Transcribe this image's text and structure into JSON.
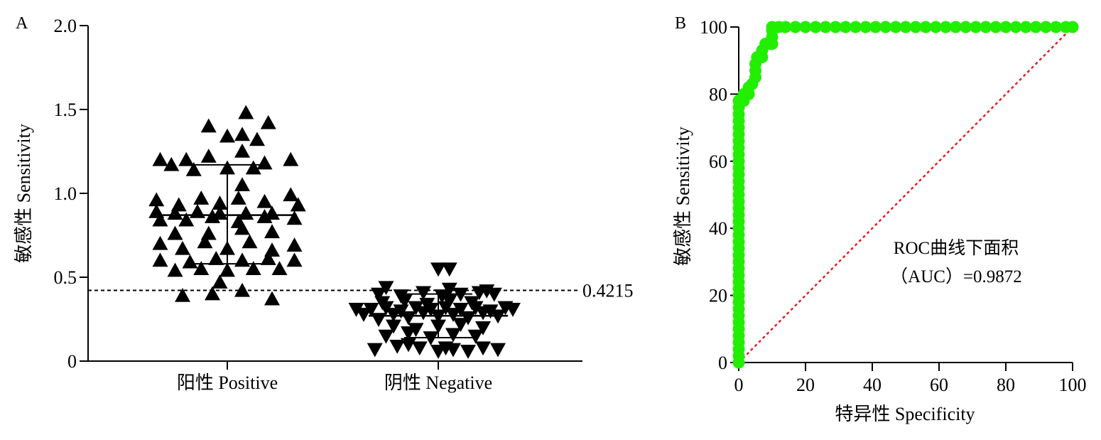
{
  "chart_data": [
    {
      "panel": "A",
      "type": "scatter",
      "ylabel": "敏感性 Sensitivity",
      "ylim": [
        0,
        2.0
      ],
      "yticks": [
        {
          "value": 0,
          "label": "0"
        },
        {
          "value": 0.5,
          "label": "0.5"
        },
        {
          "value": 1.0,
          "label": "1.0"
        },
        {
          "value": 1.5,
          "label": "1.5"
        },
        {
          "value": 2.0,
          "label": "2.0"
        }
      ],
      "categories": [
        "阳性 Positive",
        "阴性 Negative"
      ],
      "cutoff": {
        "value": 0.4215,
        "label": "0.4215"
      },
      "series": [
        {
          "category": "阳性 Positive",
          "marker": "triangle-up",
          "median": 0.87,
          "q1": 0.58,
          "q3": 1.17,
          "points": [
            {
              "offset": -0.6,
              "y": 0.39
            },
            {
              "offset": -0.2,
              "y": 0.4
            },
            {
              "offset": 0.2,
              "y": 0.42
            },
            {
              "offset": 0.6,
              "y": 0.37
            },
            {
              "offset": -0.1,
              "y": 0.47
            },
            {
              "offset": -0.7,
              "y": 0.54
            },
            {
              "offset": -0.35,
              "y": 0.55
            },
            {
              "offset": 0,
              "y": 0.54
            },
            {
              "offset": 0.35,
              "y": 0.55
            },
            {
              "offset": 0.7,
              "y": 0.55
            },
            {
              "offset": -0.9,
              "y": 0.6
            },
            {
              "offset": -0.5,
              "y": 0.59
            },
            {
              "offset": -0.15,
              "y": 0.61
            },
            {
              "offset": 0.2,
              "y": 0.6
            },
            {
              "offset": 0.55,
              "y": 0.61
            },
            {
              "offset": 0.9,
              "y": 0.6
            },
            {
              "offset": -0.9,
              "y": 0.7
            },
            {
              "offset": -0.6,
              "y": 0.67
            },
            {
              "offset": -0.3,
              "y": 0.71
            },
            {
              "offset": 0,
              "y": 0.67
            },
            {
              "offset": 0.3,
              "y": 0.71
            },
            {
              "offset": 0.6,
              "y": 0.66
            },
            {
              "offset": 0.9,
              "y": 0.69
            },
            {
              "offset": -0.7,
              "y": 0.76
            },
            {
              "offset": -0.25,
              "y": 0.76
            },
            {
              "offset": 0.2,
              "y": 0.79
            },
            {
              "offset": 0.6,
              "y": 0.77
            },
            {
              "offset": -0.9,
              "y": 0.84
            },
            {
              "offset": -0.55,
              "y": 0.84
            },
            {
              "offset": -0.2,
              "y": 0.86
            },
            {
              "offset": 0.15,
              "y": 0.83
            },
            {
              "offset": 0.5,
              "y": 0.86
            },
            {
              "offset": 0.9,
              "y": 0.85
            },
            {
              "offset": -0.95,
              "y": 0.89
            },
            {
              "offset": -0.7,
              "y": 0.88
            },
            {
              "offset": -0.4,
              "y": 0.89
            },
            {
              "offset": -0.1,
              "y": 0.88
            },
            {
              "offset": 0.25,
              "y": 0.88
            },
            {
              "offset": 0.6,
              "y": 0.88
            },
            {
              "offset": -0.95,
              "y": 0.96
            },
            {
              "offset": -0.65,
              "y": 0.93
            },
            {
              "offset": -0.35,
              "y": 0.97
            },
            {
              "offset": -0.1,
              "y": 0.94
            },
            {
              "offset": 0.15,
              "y": 0.97
            },
            {
              "offset": 0.5,
              "y": 0.95
            },
            {
              "offset": 0.85,
              "y": 0.99
            },
            {
              "offset": 0.95,
              "y": 0.93
            },
            {
              "offset": 0.2,
              "y": 1.05
            },
            {
              "offset": -0.9,
              "y": 1.2
            },
            {
              "offset": -0.55,
              "y": 1.2
            },
            {
              "offset": -0.25,
              "y": 1.22
            },
            {
              "offset": 0.2,
              "y": 1.25
            },
            {
              "offset": 0.5,
              "y": 1.18
            },
            {
              "offset": 0.85,
              "y": 1.2
            },
            {
              "offset": -0.75,
              "y": 1.17
            },
            {
              "offset": -0.45,
              "y": 1.14
            },
            {
              "offset": 0,
              "y": 1.15
            },
            {
              "offset": 0.35,
              "y": 1.15
            },
            {
              "offset": -0.25,
              "y": 1.4
            },
            {
              "offset": 0,
              "y": 1.34
            },
            {
              "offset": 0.2,
              "y": 1.35
            },
            {
              "offset": 0.4,
              "y": 1.32
            },
            {
              "offset": 0.55,
              "y": 1.42
            },
            {
              "offset": 0.25,
              "y": 1.48
            }
          ]
        },
        {
          "category": "阴性 Negative",
          "marker": "triangle-down",
          "median": 0.27,
          "q1": 0.14,
          "q3": 0.4,
          "points": [
            {
              "offset": -0.85,
              "y": 0.07
            },
            {
              "offset": -0.55,
              "y": 0.09
            },
            {
              "offset": -0.25,
              "y": 0.08
            },
            {
              "offset": 0,
              "y": 0.06
            },
            {
              "offset": 0.2,
              "y": 0.07
            },
            {
              "offset": 0.4,
              "y": 0.06
            },
            {
              "offset": 0.6,
              "y": 0.08
            },
            {
              "offset": 0.8,
              "y": 0.07
            },
            {
              "offset": -0.4,
              "y": 0.1
            },
            {
              "offset": 0.1,
              "y": 0.08
            },
            {
              "offset": -0.7,
              "y": 0.15
            },
            {
              "offset": -0.4,
              "y": 0.17
            },
            {
              "offset": -0.1,
              "y": 0.14
            },
            {
              "offset": 0.2,
              "y": 0.16
            },
            {
              "offset": 0.5,
              "y": 0.15
            },
            {
              "offset": -0.6,
              "y": 0.21
            },
            {
              "offset": -0.3,
              "y": 0.19
            },
            {
              "offset": 0,
              "y": 0.21
            },
            {
              "offset": 0.3,
              "y": 0.22
            },
            {
              "offset": 0.6,
              "y": 0.2
            },
            {
              "offset": -1.0,
              "y": 0.28
            },
            {
              "offset": -0.8,
              "y": 0.25
            },
            {
              "offset": -0.6,
              "y": 0.28
            },
            {
              "offset": -0.4,
              "y": 0.26
            },
            {
              "offset": -0.2,
              "y": 0.29
            },
            {
              "offset": 0,
              "y": 0.27
            },
            {
              "offset": 0.2,
              "y": 0.28
            },
            {
              "offset": 0.4,
              "y": 0.26
            },
            {
              "offset": 0.6,
              "y": 0.29
            },
            {
              "offset": 0.8,
              "y": 0.27
            },
            {
              "offset": 1.0,
              "y": 0.31
            },
            {
              "offset": -1.1,
              "y": 0.31
            },
            {
              "offset": -0.9,
              "y": 0.31
            },
            {
              "offset": -0.7,
              "y": 0.32
            },
            {
              "offset": -0.5,
              "y": 0.3
            },
            {
              "offset": -0.3,
              "y": 0.32
            },
            {
              "offset": -0.1,
              "y": 0.31
            },
            {
              "offset": 0.1,
              "y": 0.32
            },
            {
              "offset": 0.3,
              "y": 0.31
            },
            {
              "offset": 0.5,
              "y": 0.32
            },
            {
              "offset": 0.7,
              "y": 0.3
            },
            {
              "offset": 0.9,
              "y": 0.32
            },
            {
              "offset": -0.75,
              "y": 0.35
            },
            {
              "offset": -0.45,
              "y": 0.36
            },
            {
              "offset": -0.15,
              "y": 0.34
            },
            {
              "offset": 0.15,
              "y": 0.36
            },
            {
              "offset": 0.45,
              "y": 0.35
            },
            {
              "offset": -0.8,
              "y": 0.4
            },
            {
              "offset": -0.5,
              "y": 0.39
            },
            {
              "offset": -0.2,
              "y": 0.41
            },
            {
              "offset": 0.05,
              "y": 0.39
            },
            {
              "offset": 0.3,
              "y": 0.4
            },
            {
              "offset": 0.55,
              "y": 0.41
            },
            {
              "offset": 0.75,
              "y": 0.4
            },
            {
              "offset": -0.7,
              "y": 0.44
            },
            {
              "offset": 0.15,
              "y": 0.43
            },
            {
              "offset": 0.65,
              "y": 0.42
            },
            {
              "offset": 0,
              "y": 0.55
            },
            {
              "offset": 0.15,
              "y": 0.55
            }
          ]
        }
      ]
    },
    {
      "panel": "B",
      "type": "line",
      "xlabel": "特异性 Specificity",
      "ylabel": "敏感性 Sensitivity",
      "xlim": [
        0,
        100
      ],
      "ylim": [
        0,
        100
      ],
      "xticks": [
        0,
        20,
        40,
        60,
        80,
        100
      ],
      "yticks": [
        0,
        20,
        40,
        60,
        80,
        100
      ],
      "annotation": [
        "ROC曲线下面积",
        "（AUC）=0.9872"
      ],
      "roc_points": [
        [
          0,
          0
        ],
        [
          0,
          2
        ],
        [
          0,
          4
        ],
        [
          0,
          6
        ],
        [
          0,
          8
        ],
        [
          0,
          10
        ],
        [
          0,
          12
        ],
        [
          0,
          14
        ],
        [
          0,
          16
        ],
        [
          0,
          18
        ],
        [
          0,
          20
        ],
        [
          0,
          22
        ],
        [
          0,
          24
        ],
        [
          0,
          26
        ],
        [
          0,
          28
        ],
        [
          0,
          30
        ],
        [
          0,
          32
        ],
        [
          0,
          34
        ],
        [
          0,
          36
        ],
        [
          0,
          38
        ],
        [
          0,
          40
        ],
        [
          0,
          42
        ],
        [
          0,
          44
        ],
        [
          0,
          46
        ],
        [
          0,
          48
        ],
        [
          0,
          50
        ],
        [
          0,
          52
        ],
        [
          0,
          54
        ],
        [
          0,
          56
        ],
        [
          0,
          58
        ],
        [
          0,
          60
        ],
        [
          0,
          62
        ],
        [
          0,
          64
        ],
        [
          0,
          66
        ],
        [
          0,
          68
        ],
        [
          0,
          70
        ],
        [
          0,
          72
        ],
        [
          0,
          74
        ],
        [
          0,
          76
        ],
        [
          0,
          78
        ],
        [
          1.5,
          78
        ],
        [
          1.5,
          80
        ],
        [
          3,
          80
        ],
        [
          3,
          82
        ],
        [
          4,
          83
        ],
        [
          5,
          85
        ],
        [
          5,
          87
        ],
        [
          5,
          89
        ],
        [
          5.5,
          91
        ],
        [
          7,
          91
        ],
        [
          7,
          93
        ],
        [
          8,
          95
        ],
        [
          9,
          95
        ],
        [
          10,
          95
        ],
        [
          10,
          97
        ],
        [
          10,
          99
        ],
        [
          10,
          100
        ],
        [
          12,
          100
        ],
        [
          14,
          100
        ],
        [
          17,
          100
        ],
        [
          20,
          100
        ],
        [
          23,
          100
        ],
        [
          26,
          100
        ],
        [
          29,
          100
        ],
        [
          32,
          100
        ],
        [
          35,
          100
        ],
        [
          38,
          100
        ],
        [
          41,
          100
        ],
        [
          44,
          100
        ],
        [
          47,
          100
        ],
        [
          50,
          100
        ],
        [
          53,
          100
        ],
        [
          56,
          100
        ],
        [
          59,
          100
        ],
        [
          62,
          100
        ],
        [
          65,
          100
        ],
        [
          68,
          100
        ],
        [
          71,
          100
        ],
        [
          74,
          100
        ],
        [
          77,
          100
        ],
        [
          80,
          100
        ],
        [
          83,
          100
        ],
        [
          86,
          100
        ],
        [
          89,
          100
        ],
        [
          92,
          100
        ],
        [
          95,
          100
        ],
        [
          98,
          100
        ],
        [
          100,
          100
        ]
      ],
      "reference_line": [
        [
          0,
          0
        ],
        [
          100,
          100
        ]
      ],
      "colors": {
        "roc": "#22ee00",
        "reference": "#e02020"
      }
    }
  ]
}
